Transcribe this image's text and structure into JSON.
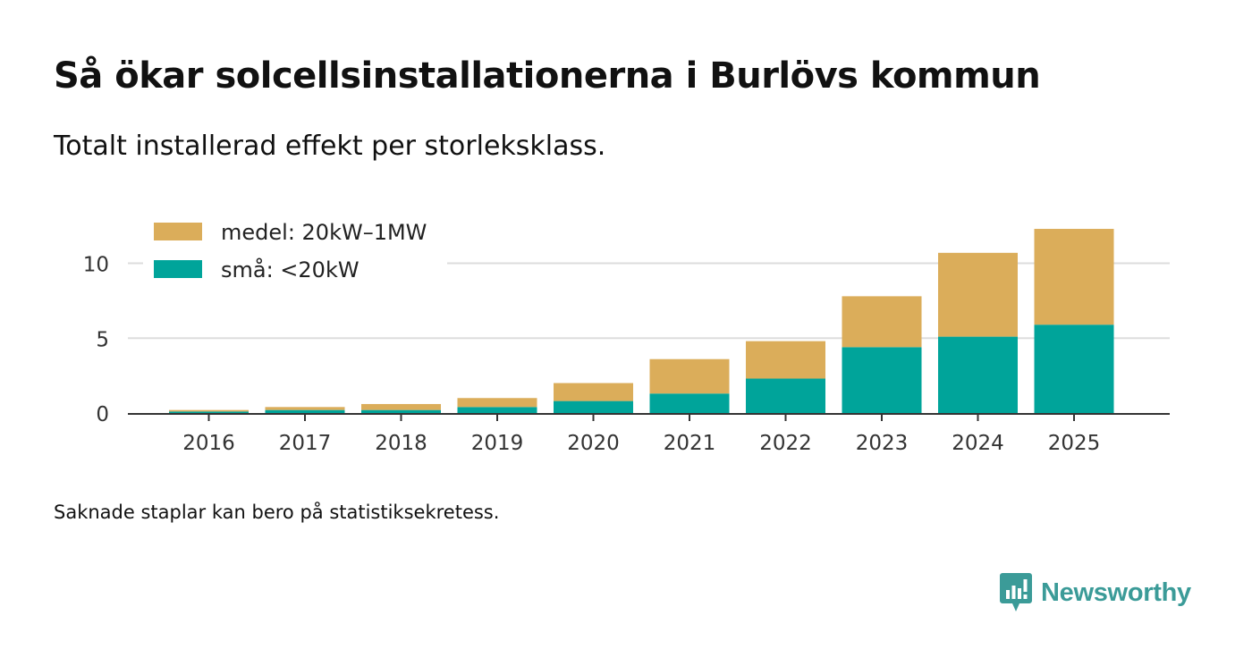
{
  "title": "Så ökar solcellsinstallationerna i Burlövs kommun",
  "subtitle": "Totalt installerad effekt per storleksklass.",
  "footnote": "Saknade staplar kan bero på statistiksekretess.",
  "brand": {
    "name": "Newsworthy",
    "icon": "newsworthy-logo-icon",
    "color": "#3b9b98"
  },
  "chart_data": {
    "type": "bar",
    "stacked": true,
    "title": "Så ökar solcellsinstallationerna i Burlövs kommun",
    "xlabel": "",
    "ylabel": "",
    "categories": [
      "2016",
      "2017",
      "2018",
      "2019",
      "2020",
      "2021",
      "2022",
      "2023",
      "2024",
      "2025"
    ],
    "series": [
      {
        "name": "små: <20kW",
        "color": "#00a49a",
        "values": [
          0.1,
          0.2,
          0.2,
          0.4,
          0.8,
          1.3,
          2.3,
          4.4,
          5.1,
          5.9
        ]
      },
      {
        "name": "medel: 20kW–1MW",
        "color": "#dbad5a",
        "values": [
          0.1,
          0.2,
          0.4,
          0.6,
          1.2,
          2.3,
          2.5,
          3.4,
          5.6,
          6.4
        ]
      }
    ],
    "legend_order": [
      "medel: 20kW–1MW",
      "små: <20kW"
    ],
    "legend_position": "top-left",
    "ylim": [
      0,
      12.6
    ],
    "yticks": [
      0,
      5,
      10
    ],
    "grid": true
  }
}
